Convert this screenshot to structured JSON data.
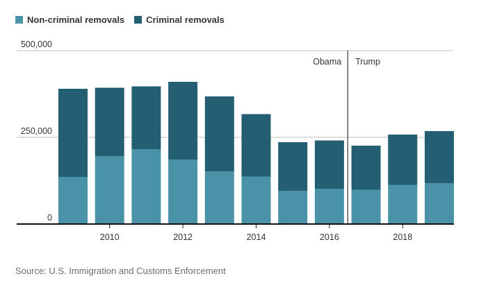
{
  "legend": [
    {
      "label": "Non-criminal removals",
      "color": "#4a92a8"
    },
    {
      "label": "Criminal removals",
      "color": "#235e73"
    }
  ],
  "chart_data": {
    "type": "bar",
    "stacked": true,
    "x": [
      2009,
      2010,
      2011,
      2012,
      2013,
      2014,
      2015,
      2016,
      2017,
      2018,
      2019
    ],
    "series": [
      {
        "name": "Non-criminal removals",
        "values": [
          136000,
          196000,
          216000,
          186000,
          152000,
          137000,
          96000,
          102000,
          99000,
          113000,
          118000
        ]
      },
      {
        "name": "Criminal removals",
        "values": [
          254000,
          197000,
          181000,
          224000,
          216000,
          180000,
          140000,
          139000,
          127000,
          145000,
          150000
        ]
      }
    ],
    "x_tick_labels": [
      "2010",
      "2012",
      "2014",
      "2016",
      "2018"
    ],
    "y_tick_labels": [
      "0",
      "250,000",
      "500,000"
    ],
    "ylim": [
      0,
      500000
    ],
    "annotations": [
      {
        "label": "Obama",
        "side": "left"
      },
      {
        "label": "Trump",
        "side": "right"
      }
    ],
    "divider_between": [
      2016,
      2017
    ],
    "grid": true
  },
  "source": "Source: U.S. Immigration and Customs Enforcement"
}
